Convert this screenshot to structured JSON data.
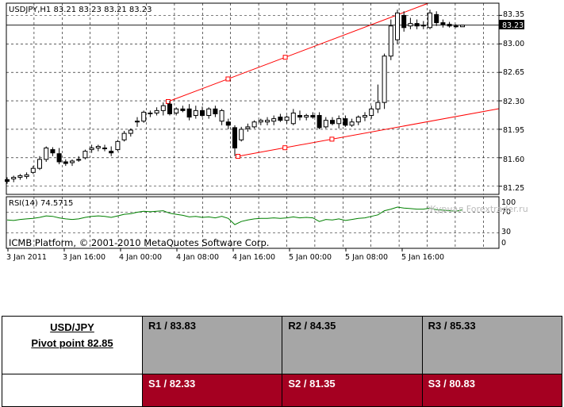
{
  "chart": {
    "header": "USDJPY,H1  83.21 83.23 83.21 83.23",
    "current_price_tag": "83.23",
    "price_axis": [
      "83.35",
      "83.00",
      "82.65",
      "82.30",
      "81.95",
      "81.60",
      "81.25"
    ],
    "rsi_label": "RSI(14) 74.5715",
    "rsi_axis": [
      "100",
      "70",
      "30",
      "0"
    ],
    "copyright": "ICMB Platform, © 2001-2010 MetaQuotes Software Corp.",
    "watermark": "Журнал Forextrader.ru",
    "time_axis": [
      "3 Jan 2011",
      "3 Jan 16:00",
      "4 Jan 00:00",
      "4 Jan 08:00",
      "4 Jan 16:00",
      "5 Jan 00:00",
      "5 Jan 08:00",
      "5 Jan 16:00"
    ],
    "colors": {
      "trendline": "#ff0000",
      "rsi_line": "#008000",
      "grid": "#000000",
      "candle": "#000000"
    }
  },
  "chart_data": {
    "type": "candlestick",
    "symbol": "USDJPY",
    "timeframe": "H1",
    "ylim": [
      81.15,
      83.5
    ],
    "candles": [
      {
        "o": 81.33,
        "h": 81.36,
        "l": 81.28,
        "c": 81.31
      },
      {
        "o": 81.34,
        "h": 81.38,
        "l": 81.3,
        "c": 81.36
      },
      {
        "o": 81.36,
        "h": 81.4,
        "l": 81.33,
        "c": 81.38
      },
      {
        "o": 81.37,
        "h": 81.42,
        "l": 81.34,
        "c": 81.39
      },
      {
        "o": 81.42,
        "h": 81.5,
        "l": 81.4,
        "c": 81.47
      },
      {
        "o": 81.47,
        "h": 81.62,
        "l": 81.45,
        "c": 81.58
      },
      {
        "o": 81.58,
        "h": 81.74,
        "l": 81.55,
        "c": 81.72
      },
      {
        "o": 81.7,
        "h": 81.73,
        "l": 81.62,
        "c": 81.66
      },
      {
        "o": 81.65,
        "h": 81.72,
        "l": 81.52,
        "c": 81.55
      },
      {
        "o": 81.55,
        "h": 81.58,
        "l": 81.5,
        "c": 81.53
      },
      {
        "o": 81.54,
        "h": 81.58,
        "l": 81.5,
        "c": 81.56
      },
      {
        "o": 81.58,
        "h": 81.62,
        "l": 81.55,
        "c": 81.57
      },
      {
        "o": 81.6,
        "h": 81.7,
        "l": 81.58,
        "c": 81.68
      },
      {
        "o": 81.7,
        "h": 81.76,
        "l": 81.66,
        "c": 81.72
      },
      {
        "o": 81.72,
        "h": 81.76,
        "l": 81.68,
        "c": 81.74
      },
      {
        "o": 81.72,
        "h": 81.76,
        "l": 81.68,
        "c": 81.72
      },
      {
        "o": 81.68,
        "h": 81.74,
        "l": 81.62,
        "c": 81.66
      },
      {
        "o": 81.7,
        "h": 81.82,
        "l": 81.68,
        "c": 81.8
      },
      {
        "o": 81.82,
        "h": 81.93,
        "l": 81.8,
        "c": 81.9
      },
      {
        "o": 81.9,
        "h": 81.96,
        "l": 81.86,
        "c": 81.94
      },
      {
        "o": 82.04,
        "h": 82.1,
        "l": 81.98,
        "c": 82.05
      },
      {
        "o": 82.05,
        "h": 82.18,
        "l": 82.03,
        "c": 82.16
      },
      {
        "o": 82.14,
        "h": 82.18,
        "l": 82.1,
        "c": 82.15
      },
      {
        "o": 82.15,
        "h": 82.22,
        "l": 82.12,
        "c": 82.18
      },
      {
        "o": 82.18,
        "h": 82.28,
        "l": 82.12,
        "c": 82.24
      },
      {
        "o": 82.26,
        "h": 82.3,
        "l": 82.12,
        "c": 82.14
      },
      {
        "o": 82.15,
        "h": 82.22,
        "l": 82.12,
        "c": 82.2
      },
      {
        "o": 82.2,
        "h": 82.24,
        "l": 82.16,
        "c": 82.18
      },
      {
        "o": 82.2,
        "h": 82.26,
        "l": 82.06,
        "c": 82.1
      },
      {
        "o": 82.12,
        "h": 82.24,
        "l": 82.08,
        "c": 82.18
      },
      {
        "o": 82.18,
        "h": 82.23,
        "l": 82.1,
        "c": 82.12
      },
      {
        "o": 82.12,
        "h": 82.22,
        "l": 82.08,
        "c": 82.2
      },
      {
        "o": 82.2,
        "h": 82.24,
        "l": 82.1,
        "c": 82.14
      },
      {
        "o": 82.05,
        "h": 82.2,
        "l": 82.0,
        "c": 82.18
      },
      {
        "o": 82.04,
        "h": 82.08,
        "l": 81.95,
        "c": 82.0
      },
      {
        "o": 81.97,
        "h": 82.0,
        "l": 81.62,
        "c": 81.72
      },
      {
        "o": 81.82,
        "h": 81.98,
        "l": 81.8,
        "c": 81.95
      },
      {
        "o": 81.96,
        "h": 82.02,
        "l": 81.92,
        "c": 81.98
      },
      {
        "o": 81.98,
        "h": 82.06,
        "l": 81.96,
        "c": 82.04
      },
      {
        "o": 82.04,
        "h": 82.08,
        "l": 82.0,
        "c": 82.06
      },
      {
        "o": 82.04,
        "h": 82.1,
        "l": 82.0,
        "c": 82.06
      },
      {
        "o": 82.05,
        "h": 82.12,
        "l": 82.0,
        "c": 82.08
      },
      {
        "o": 82.1,
        "h": 82.14,
        "l": 82.04,
        "c": 82.06
      },
      {
        "o": 82.06,
        "h": 82.12,
        "l": 82.02,
        "c": 82.1
      },
      {
        "o": 82.02,
        "h": 82.2,
        "l": 82.0,
        "c": 82.15
      },
      {
        "o": 82.12,
        "h": 82.18,
        "l": 82.06,
        "c": 82.1
      },
      {
        "o": 82.1,
        "h": 82.14,
        "l": 82.06,
        "c": 82.12
      },
      {
        "o": 82.12,
        "h": 82.16,
        "l": 82.08,
        "c": 82.1
      },
      {
        "o": 82.12,
        "h": 82.16,
        "l": 81.95,
        "c": 81.97
      },
      {
        "o": 81.98,
        "h": 82.1,
        "l": 81.96,
        "c": 82.06
      },
      {
        "o": 82.06,
        "h": 82.1,
        "l": 82.0,
        "c": 82.02
      },
      {
        "o": 82.02,
        "h": 82.12,
        "l": 81.96,
        "c": 82.08
      },
      {
        "o": 82.08,
        "h": 82.12,
        "l": 81.98,
        "c": 82.0
      },
      {
        "o": 82.0,
        "h": 82.08,
        "l": 81.98,
        "c": 82.04
      },
      {
        "o": 82.04,
        "h": 82.12,
        "l": 82.0,
        "c": 82.1
      },
      {
        "o": 82.1,
        "h": 82.16,
        "l": 82.05,
        "c": 82.12
      },
      {
        "o": 82.12,
        "h": 82.24,
        "l": 82.08,
        "c": 82.2
      },
      {
        "o": 82.2,
        "h": 82.5,
        "l": 82.15,
        "c": 82.28
      },
      {
        "o": 82.28,
        "h": 82.88,
        "l": 82.2,
        "c": 82.85
      },
      {
        "o": 82.85,
        "h": 83.3,
        "l": 82.8,
        "c": 83.22
      },
      {
        "o": 83.05,
        "h": 83.42,
        "l": 83.0,
        "c": 83.38
      },
      {
        "o": 83.35,
        "h": 83.4,
        "l": 83.15,
        "c": 83.2
      },
      {
        "o": 83.22,
        "h": 83.32,
        "l": 83.18,
        "c": 83.25
      },
      {
        "o": 83.25,
        "h": 83.3,
        "l": 83.18,
        "c": 83.22
      },
      {
        "o": 83.22,
        "h": 83.28,
        "l": 83.18,
        "c": 83.23
      },
      {
        "o": 83.2,
        "h": 83.42,
        "l": 83.18,
        "c": 83.38
      },
      {
        "o": 83.36,
        "h": 83.4,
        "l": 83.22,
        "c": 83.26
      },
      {
        "o": 83.26,
        "h": 83.3,
        "l": 83.2,
        "c": 83.24
      },
      {
        "o": 83.24,
        "h": 83.27,
        "l": 83.2,
        "c": 83.22
      },
      {
        "o": 83.22,
        "h": 83.24,
        "l": 83.2,
        "c": 83.21
      },
      {
        "o": 83.21,
        "h": 83.23,
        "l": 83.21,
        "c": 83.23
      }
    ],
    "rsi": [
      55,
      54,
      56,
      57,
      58,
      60,
      63,
      62,
      59,
      57,
      56,
      57,
      60,
      62,
      63,
      62,
      60,
      63,
      66,
      67,
      70,
      72,
      71,
      72,
      73,
      68,
      66,
      64,
      61,
      62,
      60,
      61,
      59,
      62,
      58,
      46,
      52,
      55,
      57,
      58,
      58,
      59,
      58,
      59,
      61,
      59,
      60,
      59,
      52,
      56,
      55,
      57,
      54,
      56,
      58,
      59,
      62,
      65,
      73,
      76,
      80,
      78,
      77,
      76,
      76,
      78,
      75,
      74,
      73,
      72,
      74.57
    ]
  },
  "pivot_table": {
    "pair": "USD/JPY",
    "pivot_point": "Pivot point 82.85",
    "resistance": [
      "R1 / 83.83",
      "R2 / 84.35",
      "R3 / 85.33"
    ],
    "support": [
      "S1 / 82.33",
      "S2 / 81.35",
      "S3 / 80.83"
    ],
    "colors": {
      "resistance_bg": "#a6a6a6",
      "support_bg": "#a50021",
      "support_text": "#ffffff"
    }
  }
}
